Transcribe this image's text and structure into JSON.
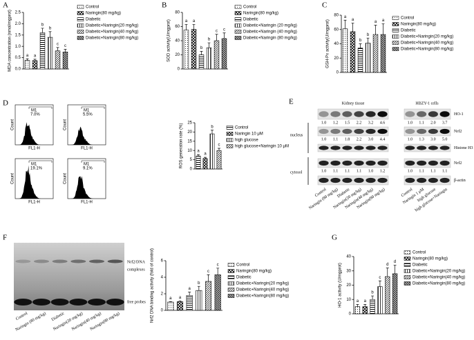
{
  "chart_data": [
    {
      "type": "bar",
      "panel": "A",
      "y_label": "MDA concentration (nmol/mgprot)",
      "categories": [
        "Control",
        "Naringin(80 mg/kg)",
        "Diabetic",
        "Diabetic+Naringin(20 mg/kg)",
        "Diabetic+Naringin(40 mg/kg)",
        "Diabetic+Naringin(80 mg/kg)"
      ],
      "values": [
        0.38,
        0.37,
        1.6,
        1.4,
        0.8,
        0.75
      ],
      "errors": [
        0.07,
        0.06,
        0.2,
        0.25,
        0.15,
        0.12
      ],
      "annotations": [
        "a",
        "a",
        "b",
        "b",
        "c",
        "c"
      ],
      "ylim": [
        0,
        2.5
      ],
      "yticks": [
        {
          "value": 0,
          "label": "0.0"
        },
        0.5,
        {
          "value": 1,
          "label": "1.0"
        },
        1.5,
        {
          "value": 2,
          "label": "2.0"
        },
        2.5
      ]
    },
    {
      "type": "bar",
      "panel": "B",
      "y_label": "SOD activity(U/mgprot)",
      "categories": [
        "Control",
        "Naringin(80 mg/kg)",
        "Diabetic",
        "Diabetic+Naringin (20 mg/kg)",
        "Diabetic+Naringin (40 mg/kg)",
        "Diabetic+Naringin (80 mg/kg)"
      ],
      "values": [
        55,
        56,
        20,
        30,
        40,
        43
      ],
      "errors": [
        8,
        7,
        5,
        7,
        9,
        8
      ],
      "annotations": [
        "a",
        "a",
        "b",
        "b",
        "c",
        "c"
      ],
      "ylim": [
        0,
        80
      ],
      "yticks": [
        0,
        20,
        40,
        60,
        80
      ]
    },
    {
      "type": "bar",
      "panel": "C",
      "y_label": "GSH-Px activity(U/mgprot)",
      "categories": [
        "Control",
        "Naringin(80 mg/kg)",
        "Diabetic",
        "Diabetic+Naringin(20 mg/kg)",
        "Diabetic+Naringin(40 mg/kg)",
        "Diabetic+Naringin(80 mg/kg)"
      ],
      "values": [
        61,
        57,
        34,
        41,
        53,
        53
      ],
      "errors": [
        12,
        12,
        6,
        7,
        13,
        15
      ],
      "annotations": [
        "a",
        "a",
        "b",
        "b",
        "a",
        "a"
      ],
      "ylim": [
        0,
        80
      ],
      "yticks": [
        0,
        20,
        40,
        60,
        80
      ]
    },
    {
      "type": "bar",
      "panel": "D",
      "y_label": "ROS generation rate (%)",
      "categories": [
        "Control",
        "Naringin 10 μM",
        "high glucose",
        "high glucose+Naringin 10 μM"
      ],
      "values": [
        7,
        5.7,
        19,
        10
      ],
      "errors": [
        0.8,
        0.6,
        2,
        1.2
      ],
      "annotations": [
        "a",
        "a",
        "b",
        "c"
      ],
      "ylim": [
        0,
        25
      ],
      "yticks": [
        0,
        5,
        10,
        15,
        20,
        25
      ]
    },
    {
      "type": "bar",
      "panel": "F",
      "y_label": "Nrf2 DNA binding activity (fold of control)",
      "categories": [
        "Control",
        "Naringin(80 mg/kg)",
        "Diabetic",
        "Diabetic+Naringin(20 mg/kg)",
        "Diabetic+Naringin(40 mg/kg)",
        "Diabetic+Naringin(80 mg/kg)"
      ],
      "values": [
        1,
        1.05,
        1.8,
        2.4,
        3.5,
        4.3
      ],
      "errors": [
        0.05,
        0.1,
        0.4,
        0.5,
        0.8,
        0.8
      ],
      "annotations": [
        "a",
        "a",
        "a",
        "b",
        "c",
        "c"
      ],
      "ylim": [
        0,
        6
      ],
      "yticks": [
        0,
        2,
        4,
        6
      ]
    },
    {
      "type": "bar",
      "panel": "G",
      "y_label": "HO-1 activity (U/mgprot)",
      "categories": [
        "Control",
        "Naringin(80 mg/kg)",
        "Diabetic",
        "Diabetic+Naringin(20 mg/kg)",
        "Diabetic+Naringin(40 mg/kg)",
        "Diabetic+Naringin(80 mg/kg)"
      ],
      "values": [
        5,
        5,
        10,
        19,
        26,
        28
      ],
      "errors": [
        1.5,
        1.5,
        2.5,
        4,
        6,
        6
      ],
      "annotations": [
        "a",
        "a",
        "b",
        "c",
        "d",
        "d"
      ],
      "ylim": [
        0,
        40
      ],
      "yticks": [
        0,
        10,
        20,
        30,
        40
      ]
    }
  ],
  "flow": {
    "y_label": "Count",
    "x_label": "FL1-H",
    "gate": "M1",
    "percents": [
      "7.0%",
      "5.5%",
      "19.1%",
      "9.1%"
    ]
  },
  "western": {
    "panel": "E",
    "groups": [
      "Kidney tissue",
      "HBZY-1 cells"
    ],
    "compartments": [
      "nucleus",
      "cytosol"
    ],
    "rows": [
      {
        "label": "HO-1",
        "kidney": [
          "1.0",
          "1.2",
          "1.5",
          "2.2",
          "3.2",
          "4.6"
        ],
        "cells": [
          "1.0",
          "1.1",
          "2.0",
          "3.7"
        ]
      },
      {
        "label": "Nrf2",
        "kidney": [
          "1.0",
          "1.1",
          "1.8",
          "2.2",
          "3.0",
          "4.4"
        ],
        "cells": [
          "1.0",
          "1.3",
          "3.0",
          "5.0"
        ]
      },
      {
        "label": "Histone H3"
      },
      {
        "label": "Nrf2",
        "kidney": [
          "1.0",
          "1.1",
          "1.1",
          "1.1",
          "1.0",
          "1.2"
        ],
        "cells": [
          "1.0",
          "1.1",
          "1.1",
          "1.1"
        ]
      },
      {
        "label": "β-actin"
      }
    ],
    "kidney_lanes": [
      "Control",
      "Naringin (80 mg/kg)",
      "Diabetic",
      "Naringin(20 mg/kg)",
      "Naringin(40 mg/kg)",
      "Naringin(80 mg/kg)"
    ],
    "cell_lanes": [
      "Control",
      "Naringin 1 μM",
      "high glucose",
      "high glucose+Naringin"
    ]
  },
  "emsa": {
    "complex_label": [
      "Nrf2/DNA",
      "complexes"
    ],
    "free_label": "free probes",
    "lanes": [
      "Control",
      "Naringin (80 mg/kg)",
      "Diabetic",
      "Naringin(20 mg/kg)",
      "Naringin(40 mg/kg)",
      "Naringin(80 mg/kg)"
    ]
  }
}
